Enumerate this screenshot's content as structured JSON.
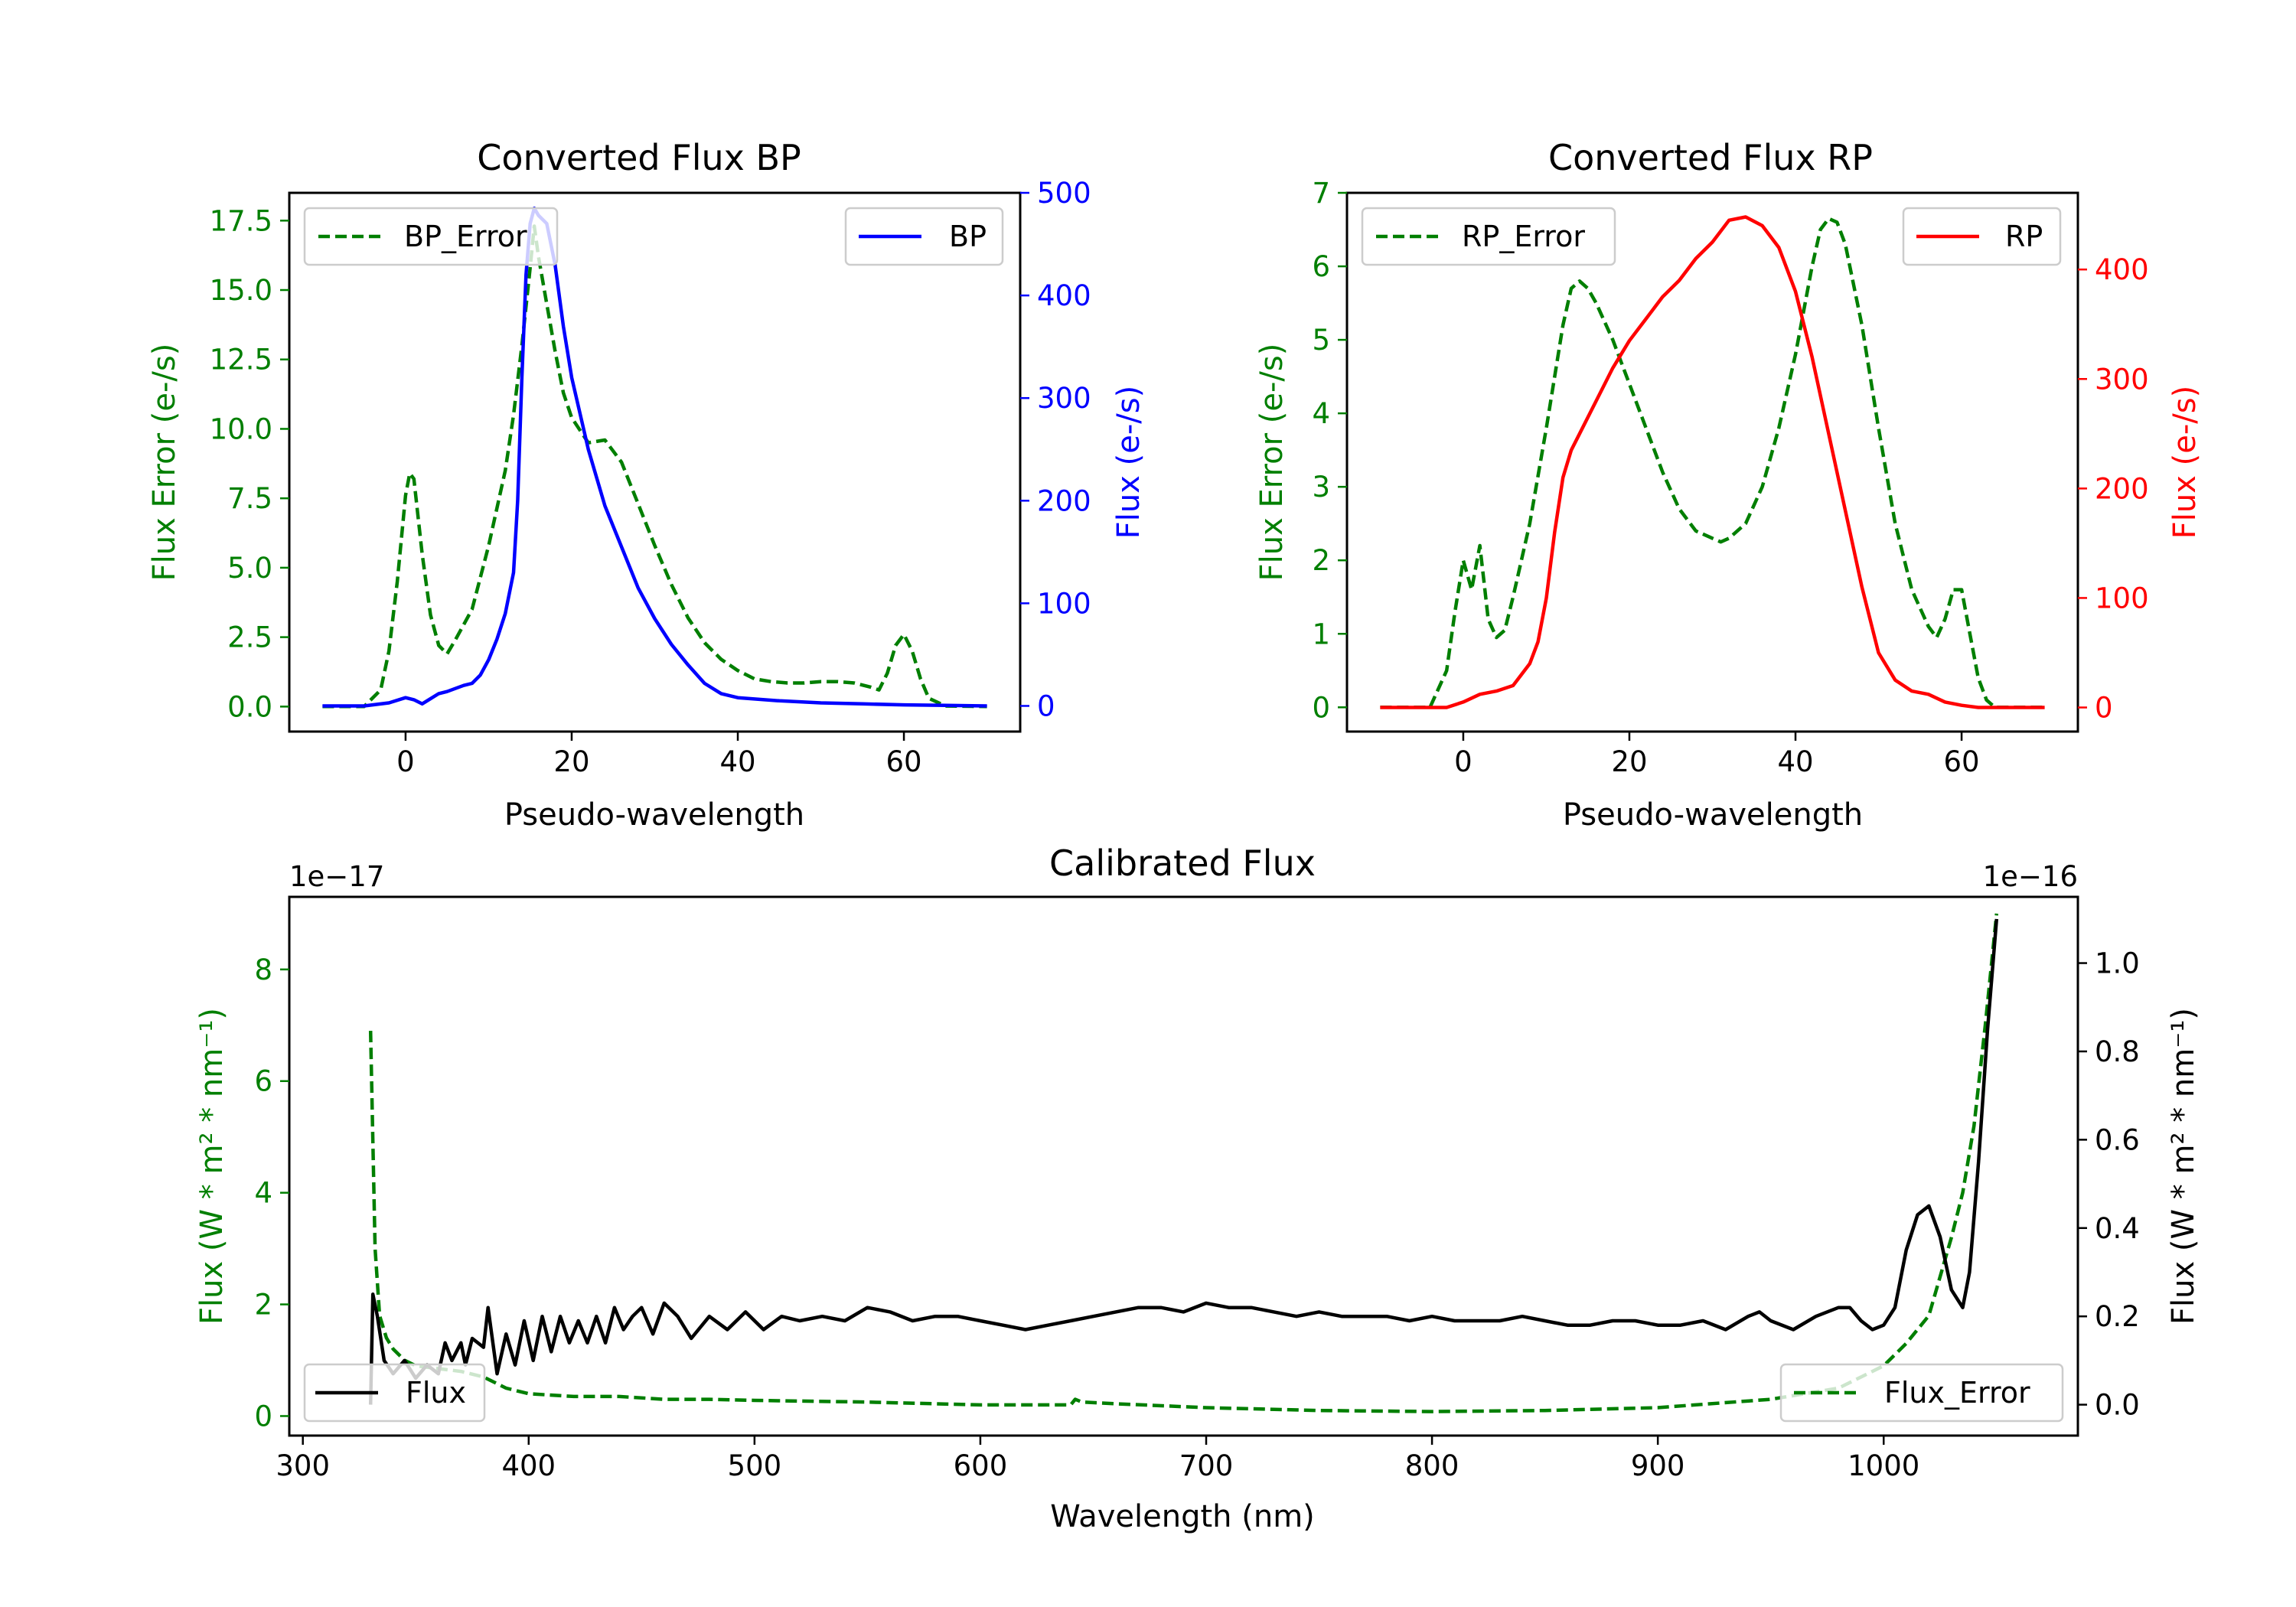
{
  "colors": {
    "green": "#007f00",
    "blue": "#0000ff",
    "red": "#ff0000",
    "black": "#000000"
  },
  "chart_data": [
    {
      "id": "bp",
      "type": "line",
      "title": "Converted Flux BP",
      "xlabel": "Pseudo-wavelength",
      "ylabel_left": "Flux Error (e-/s)",
      "ylabel_right": "Flux (e-/s)",
      "xlim": [
        -14,
        74
      ],
      "ylim_left": [
        -0.9,
        18.5
      ],
      "ylim_right": [
        -25,
        500
      ],
      "xticks": [
        {
          "v": 0,
          "label": "0"
        },
        {
          "v": 20,
          "label": "20"
        },
        {
          "v": 40,
          "label": "40"
        },
        {
          "v": 60,
          "label": "60"
        }
      ],
      "yticks_left": [
        {
          "v": 0,
          "label": "0.0"
        },
        {
          "v": 2.5,
          "label": "2.5"
        },
        {
          "v": 5,
          "label": "5.0"
        },
        {
          "v": 7.5,
          "label": "7.5"
        },
        {
          "v": 10,
          "label": "10.0"
        },
        {
          "v": 12.5,
          "label": "12.5"
        },
        {
          "v": 15,
          "label": "15.0"
        },
        {
          "v": 17.5,
          "label": "17.5"
        }
      ],
      "yticks_right": [
        {
          "v": 0,
          "label": "0"
        },
        {
          "v": 100,
          "label": "100"
        },
        {
          "v": 200,
          "label": "200"
        },
        {
          "v": 300,
          "label": "300"
        },
        {
          "v": 400,
          "label": "400"
        },
        {
          "v": 500,
          "label": "500"
        }
      ],
      "left_color": "#007f00",
      "right_color": "#0000ff",
      "series": [
        {
          "name": "BP_Error",
          "axis": "left",
          "color": "#007f00",
          "dash": true,
          "legend": "upper-left",
          "x": [
            -10,
            -5,
            -3,
            -2,
            -1,
            0,
            0.5,
            1,
            2,
            3,
            4,
            5,
            6,
            8,
            10,
            12,
            13,
            14,
            15,
            15.5,
            16,
            17,
            18,
            19,
            20,
            22,
            24,
            26,
            28,
            30,
            32,
            34,
            36,
            38,
            40,
            42,
            44,
            46,
            48,
            50,
            52,
            54,
            56,
            57,
            58,
            59,
            60,
            61,
            62,
            63,
            65,
            70
          ],
          "y": [
            0,
            0,
            0.6,
            2,
            4.5,
            7.6,
            8.4,
            8.2,
            5.5,
            3.3,
            2.2,
            1.9,
            2.4,
            3.5,
            5.8,
            8.5,
            10.5,
            13,
            15.8,
            17.3,
            16.2,
            14.5,
            12.8,
            11.3,
            10.4,
            9.5,
            9.6,
            8.8,
            7.3,
            5.8,
            4.4,
            3.2,
            2.3,
            1.7,
            1.3,
            1.0,
            0.9,
            0.85,
            0.85,
            0.9,
            0.9,
            0.85,
            0.7,
            0.6,
            1.2,
            2.2,
            2.6,
            2.0,
            1.0,
            0.3,
            0.02,
            0
          ]
        },
        {
          "name": "BP",
          "axis": "right",
          "color": "#0000ff",
          "dash": false,
          "legend": "upper-right",
          "x": [
            -10,
            -5,
            -2,
            0,
            1,
            2,
            3,
            4,
            5,
            6,
            7,
            8,
            9,
            10,
            11,
            12,
            13,
            13.5,
            14,
            14.5,
            15,
            15.5,
            16,
            17,
            18,
            19,
            20,
            22,
            24,
            26,
            28,
            30,
            32,
            34,
            36,
            38,
            40,
            45,
            50,
            55,
            60,
            65,
            70
          ],
          "y": [
            0,
            0,
            3,
            8,
            6,
            2,
            7,
            12,
            14,
            17,
            20,
            22,
            30,
            45,
            65,
            90,
            130,
            200,
            320,
            420,
            470,
            485,
            478,
            470,
            430,
            370,
            320,
            250,
            195,
            155,
            115,
            85,
            60,
            40,
            22,
            12,
            8,
            5,
            3,
            2,
            1,
            0.5,
            0
          ]
        }
      ]
    },
    {
      "id": "rp",
      "type": "line",
      "title": "Converted Flux RP",
      "xlabel": "Pseudo-wavelength",
      "ylabel_left": "Flux Error (e-/s)",
      "ylabel_right": "Flux (e-/s)",
      "xlim": [
        -14,
        74
      ],
      "ylim_left": [
        -0.33,
        7.0
      ],
      "ylim_right": [
        -22,
        470
      ],
      "xticks": [
        {
          "v": 0,
          "label": "0"
        },
        {
          "v": 20,
          "label": "20"
        },
        {
          "v": 40,
          "label": "40"
        },
        {
          "v": 60,
          "label": "60"
        }
      ],
      "yticks_left": [
        {
          "v": 0,
          "label": "0"
        },
        {
          "v": 1,
          "label": "1"
        },
        {
          "v": 2,
          "label": "2"
        },
        {
          "v": 3,
          "label": "3"
        },
        {
          "v": 4,
          "label": "4"
        },
        {
          "v": 5,
          "label": "5"
        },
        {
          "v": 6,
          "label": "6"
        },
        {
          "v": 7,
          "label": "7"
        }
      ],
      "yticks_right": [
        {
          "v": 0,
          "label": "0"
        },
        {
          "v": 100,
          "label": "100"
        },
        {
          "v": 200,
          "label": "200"
        },
        {
          "v": 300,
          "label": "300"
        },
        {
          "v": 400,
          "label": "400"
        }
      ],
      "left_color": "#007f00",
      "right_color": "#ff0000",
      "series": [
        {
          "name": "RP_Error",
          "axis": "left",
          "color": "#007f00",
          "dash": true,
          "legend": "upper-left",
          "x": [
            -10,
            -5,
            -4,
            -2,
            -1,
            0,
            0.5,
            1,
            1.5,
            2,
            2.5,
            3,
            4,
            5,
            6,
            8,
            10,
            12,
            13,
            14,
            15,
            16,
            18,
            20,
            22,
            24,
            26,
            28,
            30,
            31,
            32,
            34,
            36,
            38,
            40,
            42,
            43,
            44,
            45,
            46,
            48,
            50,
            52,
            54,
            56,
            57,
            58,
            59,
            60,
            61,
            62,
            63,
            64,
            70
          ],
          "y": [
            0,
            0,
            0,
            0.5,
            1.3,
            2.0,
            1.8,
            1.6,
            1.9,
            2.2,
            1.7,
            1.2,
            0.95,
            1.05,
            1.5,
            2.5,
            3.8,
            5.2,
            5.7,
            5.8,
            5.7,
            5.5,
            5.0,
            4.4,
            3.8,
            3.2,
            2.7,
            2.4,
            2.3,
            2.25,
            2.3,
            2.5,
            3.0,
            3.8,
            4.8,
            6.0,
            6.5,
            6.65,
            6.6,
            6.3,
            5.2,
            3.8,
            2.5,
            1.6,
            1.1,
            0.95,
            1.2,
            1.6,
            1.6,
            1.0,
            0.4,
            0.1,
            0,
            0
          ]
        },
        {
          "name": "RP",
          "axis": "right",
          "color": "#ff0000",
          "dash": false,
          "legend": "upper-right",
          "x": [
            -10,
            -2,
            0,
            2,
            4,
            6,
            8,
            9,
            10,
            11,
            12,
            13,
            14,
            16,
            18,
            20,
            22,
            24,
            26,
            28,
            30,
            32,
            34,
            36,
            38,
            40,
            42,
            44,
            46,
            48,
            50,
            52,
            54,
            56,
            58,
            60,
            62,
            65,
            70
          ],
          "y": [
            0,
            0,
            5,
            12,
            15,
            20,
            40,
            60,
            100,
            160,
            210,
            235,
            250,
            280,
            310,
            335,
            355,
            375,
            390,
            410,
            425,
            445,
            448,
            440,
            420,
            380,
            320,
            250,
            180,
            110,
            50,
            25,
            15,
            12,
            5,
            2,
            0,
            0,
            0
          ]
        }
      ]
    },
    {
      "id": "cal",
      "type": "line",
      "title": "Calibrated Flux",
      "xlabel": "Wavelength (nm)",
      "ylabel_left": "Flux (W * m² * nm⁻¹)",
      "ylabel_right": "Flux (W * m² * nm⁻¹)",
      "offset_left": "1e−17",
      "offset_right": "1e−16",
      "xlim": [
        294,
        1086
      ],
      "ylim_left": [
        -0.35,
        9.3
      ],
      "ylim_right": [
        -0.07,
        1.15
      ],
      "xticks": [
        {
          "v": 300,
          "label": "300"
        },
        {
          "v": 400,
          "label": "400"
        },
        {
          "v": 500,
          "label": "500"
        },
        {
          "v": 600,
          "label": "600"
        },
        {
          "v": 700,
          "label": "700"
        },
        {
          "v": 800,
          "label": "800"
        },
        {
          "v": 900,
          "label": "900"
        },
        {
          "v": 1000,
          "label": "1000"
        }
      ],
      "yticks_left": [
        {
          "v": 0,
          "label": "0"
        },
        {
          "v": 2,
          "label": "2"
        },
        {
          "v": 4,
          "label": "4"
        },
        {
          "v": 6,
          "label": "6"
        },
        {
          "v": 8,
          "label": "8"
        }
      ],
      "yticks_right": [
        {
          "v": 0,
          "label": "0.0"
        },
        {
          "v": 0.2,
          "label": "0.2"
        },
        {
          "v": 0.4,
          "label": "0.4"
        },
        {
          "v": 0.6,
          "label": "0.6"
        },
        {
          "v": 0.8,
          "label": "0.8"
        },
        {
          "v": 1.0,
          "label": "1.0"
        }
      ],
      "left_color": "#007f00",
      "right_color": "#000000",
      "series": [
        {
          "name": "Flux_Error",
          "axis": "left",
          "color": "#007f00",
          "dash": true,
          "legend": "lower-right",
          "x": [
            330,
            332,
            334,
            337,
            340,
            345,
            350,
            360,
            370,
            380,
            390,
            400,
            420,
            440,
            460,
            480,
            500,
            550,
            600,
            640,
            642,
            645,
            660,
            700,
            750,
            800,
            850,
            900,
            950,
            980,
            1000,
            1010,
            1020,
            1030,
            1035,
            1040,
            1045,
            1050
          ],
          "y": [
            6.9,
            3.0,
            1.8,
            1.4,
            1.2,
            1.0,
            0.9,
            0.85,
            0.8,
            0.7,
            0.5,
            0.4,
            0.35,
            0.35,
            0.3,
            0.3,
            0.28,
            0.25,
            0.2,
            0.2,
            0.3,
            0.25,
            0.22,
            0.15,
            0.1,
            0.08,
            0.1,
            0.15,
            0.3,
            0.5,
            0.9,
            1.3,
            1.8,
            3.2,
            4.0,
            5.2,
            7.0,
            9.0
          ]
        },
        {
          "name": "Flux",
          "axis": "right",
          "color": "#000000",
          "dash": false,
          "legend": "lower-left",
          "x": [
            330,
            331,
            333,
            336,
            340,
            345,
            350,
            355,
            360,
            363,
            366,
            370,
            372,
            375,
            380,
            382,
            386,
            390,
            394,
            398,
            402,
            406,
            410,
            414,
            418,
            422,
            426,
            430,
            434,
            438,
            442,
            446,
            450,
            455,
            460,
            466,
            472,
            480,
            488,
            496,
            504,
            512,
            520,
            530,
            540,
            550,
            560,
            570,
            580,
            590,
            600,
            610,
            620,
            630,
            640,
            650,
            660,
            670,
            680,
            690,
            700,
            710,
            720,
            730,
            740,
            750,
            760,
            770,
            780,
            790,
            800,
            810,
            820,
            830,
            840,
            850,
            860,
            870,
            880,
            890,
            900,
            910,
            920,
            930,
            940,
            945,
            950,
            960,
            970,
            980,
            985,
            990,
            995,
            1000,
            1005,
            1010,
            1015,
            1020,
            1025,
            1030,
            1035,
            1038,
            1042,
            1046,
            1050
          ],
          "y": [
            0.0,
            0.25,
            0.2,
            0.1,
            0.07,
            0.1,
            0.06,
            0.09,
            0.07,
            0.14,
            0.1,
            0.14,
            0.09,
            0.15,
            0.13,
            0.22,
            0.07,
            0.16,
            0.09,
            0.19,
            0.1,
            0.2,
            0.12,
            0.2,
            0.14,
            0.19,
            0.14,
            0.2,
            0.14,
            0.22,
            0.17,
            0.2,
            0.22,
            0.16,
            0.23,
            0.2,
            0.15,
            0.2,
            0.17,
            0.21,
            0.17,
            0.2,
            0.19,
            0.2,
            0.19,
            0.22,
            0.21,
            0.19,
            0.2,
            0.2,
            0.19,
            0.18,
            0.17,
            0.18,
            0.19,
            0.2,
            0.21,
            0.22,
            0.22,
            0.21,
            0.23,
            0.22,
            0.22,
            0.21,
            0.2,
            0.21,
            0.2,
            0.2,
            0.2,
            0.19,
            0.2,
            0.19,
            0.19,
            0.19,
            0.2,
            0.19,
            0.18,
            0.18,
            0.19,
            0.19,
            0.18,
            0.18,
            0.19,
            0.17,
            0.2,
            0.21,
            0.19,
            0.17,
            0.2,
            0.22,
            0.22,
            0.19,
            0.17,
            0.18,
            0.22,
            0.35,
            0.43,
            0.45,
            0.38,
            0.26,
            0.22,
            0.3,
            0.55,
            0.85,
            1.1
          ]
        }
      ]
    }
  ]
}
